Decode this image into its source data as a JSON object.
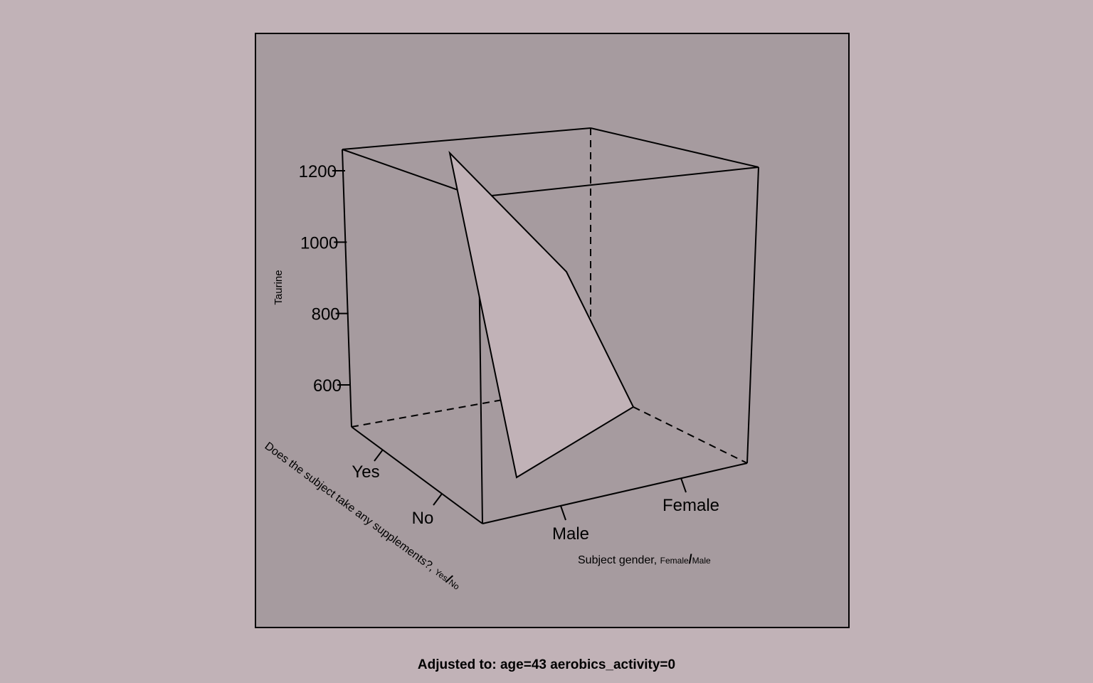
{
  "colors": {
    "page_background": "#c1b2b7",
    "plot_background": "#a69b9f",
    "surface_fill": "#c1b2b7",
    "line": "#000000"
  },
  "chart_data": {
    "type": "3d-surface",
    "title": "",
    "footer": "Adjusted to: age=43 aerobics_activity=0",
    "zlabel": "Taurine",
    "zticks": [
      600,
      800,
      1000,
      1200
    ],
    "xaxis": {
      "label": "Subject gender, ",
      "label_levels": [
        "Female",
        "Male"
      ],
      "categories": [
        "Male",
        "Female"
      ]
    },
    "yaxis": {
      "label": "Does the subject take any supplements?, ",
      "label_levels": [
        "Yes",
        "No"
      ],
      "categories": [
        "No",
        "Yes"
      ]
    },
    "surface": [
      {
        "gender": "Male",
        "supplements": "No",
        "taurine": 540
      },
      {
        "gender": "Female",
        "supplements": "No",
        "taurine": 860
      },
      {
        "gender": "Female",
        "supplements": "Yes",
        "taurine": 720
      },
      {
        "gender": "Male",
        "supplements": "Yes",
        "taurine": 1200
      }
    ],
    "grid": false,
    "legend": "none"
  }
}
